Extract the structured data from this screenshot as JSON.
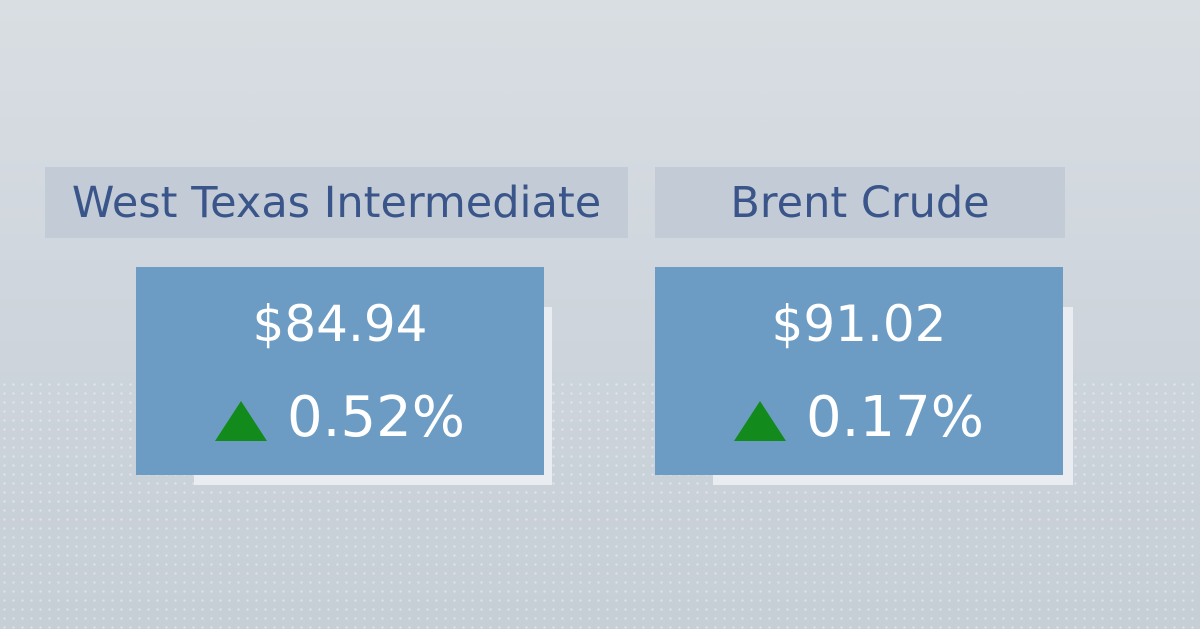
{
  "cards": [
    {
      "name": "West Texas Intermediate",
      "price": "$84.94",
      "change": "0.52%"
    },
    {
      "name": "Brent Crude",
      "price": "$91.02",
      "change": "0.17%"
    }
  ]
}
